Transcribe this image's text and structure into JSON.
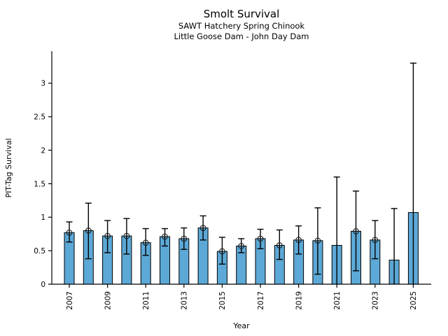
{
  "chart_data": {
    "type": "bar",
    "title": "Smolt Survival",
    "subtitle1": "SAWT Hatchery Spring Chinook",
    "subtitle2": "Little Goose Dam - John Day Dam",
    "xlabel": "Year",
    "ylabel": "PIT-Tag Survival",
    "ylim": [
      0,
      3.48
    ],
    "yticks": [
      0,
      0.5,
      1,
      1.5,
      2,
      2.5,
      3
    ],
    "ytick_labels": [
      "0",
      "0.5",
      "1",
      "1.5",
      "2",
      "2.5",
      "3"
    ],
    "xtick_years": [
      2007,
      2009,
      2011,
      2013,
      2015,
      2017,
      2019,
      2021,
      2023,
      2025
    ],
    "legend": "none",
    "grid": false,
    "bar_color": "#5CA8D6",
    "bar_edge_color": "#000000",
    "errorbar_color": "#000000",
    "marker_edge_color": "#1a1a1a",
    "series": [
      {
        "year": 2007,
        "value": 0.77,
        "err_low": 0.63,
        "err_high": 0.93,
        "marker": true,
        "low_cap": true
      },
      {
        "year": 2008,
        "value": 0.8,
        "err_low": 0.38,
        "err_high": 1.21,
        "marker": true,
        "low_cap": true
      },
      {
        "year": 2009,
        "value": 0.72,
        "err_low": 0.47,
        "err_high": 0.95,
        "marker": true,
        "low_cap": true
      },
      {
        "year": 2010,
        "value": 0.72,
        "err_low": 0.45,
        "err_high": 0.98,
        "marker": true,
        "low_cap": true
      },
      {
        "year": 2011,
        "value": 0.62,
        "err_low": 0.43,
        "err_high": 0.83,
        "marker": true,
        "low_cap": true
      },
      {
        "year": 2012,
        "value": 0.71,
        "err_low": 0.57,
        "err_high": 0.83,
        "marker": true,
        "low_cap": true
      },
      {
        "year": 2013,
        "value": 0.68,
        "err_low": 0.52,
        "err_high": 0.84,
        "marker": true,
        "low_cap": true
      },
      {
        "year": 2014,
        "value": 0.84,
        "err_low": 0.66,
        "err_high": 1.02,
        "marker": true,
        "low_cap": true
      },
      {
        "year": 2015,
        "value": 0.49,
        "err_low": 0.3,
        "err_high": 0.7,
        "marker": true,
        "low_cap": true
      },
      {
        "year": 2016,
        "value": 0.57,
        "err_low": 0.47,
        "err_high": 0.68,
        "marker": true,
        "low_cap": true
      },
      {
        "year": 2017,
        "value": 0.68,
        "err_low": 0.53,
        "err_high": 0.82,
        "marker": true,
        "low_cap": true
      },
      {
        "year": 2018,
        "value": 0.58,
        "err_low": 0.37,
        "err_high": 0.81,
        "marker": true,
        "low_cap": true
      },
      {
        "year": 2019,
        "value": 0.66,
        "err_low": 0.45,
        "err_high": 0.87,
        "marker": true,
        "low_cap": true
      },
      {
        "year": 2020,
        "value": 0.65,
        "err_low": 0.15,
        "err_high": 1.14,
        "marker": true,
        "low_cap": true
      },
      {
        "year": 2021,
        "value": 0.58,
        "err_low": 0.0,
        "err_high": 1.6,
        "marker": false,
        "low_cap": false
      },
      {
        "year": 2022,
        "value": 0.79,
        "err_low": 0.2,
        "err_high": 1.39,
        "marker": true,
        "low_cap": true
      },
      {
        "year": 2023,
        "value": 0.66,
        "err_low": 0.38,
        "err_high": 0.95,
        "marker": true,
        "low_cap": true
      },
      {
        "year": 2024,
        "value": 0.36,
        "err_low": 0.0,
        "err_high": 1.13,
        "marker": false,
        "low_cap": false
      },
      {
        "year": 2025,
        "value": 1.07,
        "err_low": 0.0,
        "err_high": 3.3,
        "marker": false,
        "low_cap": false
      }
    ]
  }
}
